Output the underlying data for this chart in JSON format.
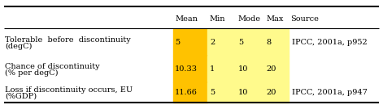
{
  "headers": [
    "Mean",
    "Min",
    "Mode",
    "Max",
    "Source"
  ],
  "rows": [
    {
      "label_line1": "Tolerable  before  discontinuity",
      "label_line2": "(degC)",
      "mean": "5",
      "min": "2",
      "mode": "5",
      "max": "8",
      "source": "IPCC, 2001a, p952"
    },
    {
      "label_line1": "Chance of discontinuity",
      "label_line2": "(% per degC)",
      "mean": "10.33",
      "min": "1",
      "mode": "10",
      "max": "20",
      "source": ""
    },
    {
      "label_line1": "Loss if discontinuity occurs, EU",
      "label_line2": "(%GDP)",
      "mean": "11.66",
      "min": "5",
      "mode": "10",
      "max": "20",
      "source": "IPCC, 2001a, p947"
    }
  ],
  "mean_color": "#FFC200",
  "highlight_color": "#FFFA8C",
  "background": "#FFFFFF",
  "font_size": 7.0
}
